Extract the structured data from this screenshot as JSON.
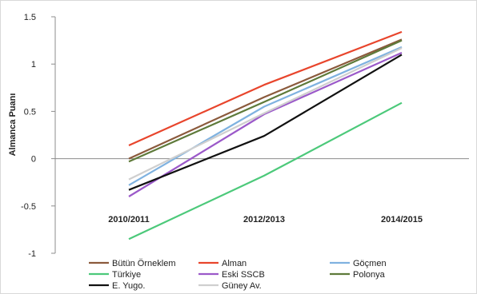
{
  "chart_data": {
    "type": "line",
    "title": "",
    "xlabel": "",
    "ylabel": "Almanca Puanı",
    "categories": [
      "2010/2011",
      "2012/2013",
      "2014/2015"
    ],
    "ylim": [
      -1,
      1.5
    ],
    "yticks": [
      -1,
      -0.5,
      0,
      0.5,
      1,
      1.5
    ],
    "ytick_labels": [
      "-1",
      "-0.5",
      "0",
      "0.5",
      "1",
      "1.5"
    ],
    "grid": false,
    "legend_position": "bottom",
    "series": [
      {
        "name": "Bütün Örneklem",
        "color": "#8B5A3C",
        "values": [
          0.0,
          0.65,
          1.26
        ]
      },
      {
        "name": "Alman",
        "color": "#E8452C",
        "values": [
          0.14,
          0.78,
          1.34
        ]
      },
      {
        "name": "Göçmen",
        "color": "#7FB2E0",
        "values": [
          -0.28,
          0.55,
          1.18
        ]
      },
      {
        "name": "Türkiye",
        "color": "#4CC97A",
        "values": [
          -0.85,
          -0.18,
          0.59
        ]
      },
      {
        "name": "Eski SSCB",
        "color": "#9B59C9",
        "values": [
          -0.4,
          0.47,
          1.12
        ]
      },
      {
        "name": "Polonya",
        "color": "#5E7A3A",
        "values": [
          -0.03,
          0.6,
          1.25
        ]
      },
      {
        "name": "E. Yugo.",
        "color": "#111111",
        "values": [
          -0.33,
          0.24,
          1.1
        ]
      },
      {
        "name": "Güney Av.",
        "color": "#CFCFCF",
        "values": [
          -0.22,
          0.48,
          1.17
        ]
      }
    ]
  }
}
